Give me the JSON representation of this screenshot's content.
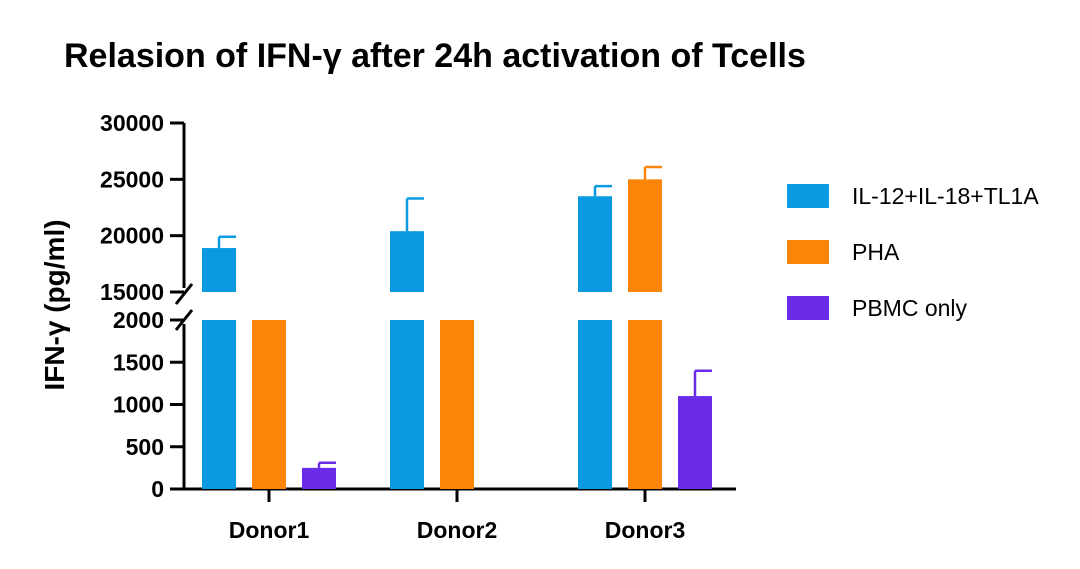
{
  "chart_data": {
    "type": "bar",
    "title": "Relasion of IFN-γ after 24h activation of Tcells",
    "xlabel": "",
    "ylabel": "IFN-γ (pg/ml)",
    "categories": [
      "Donor1",
      "Donor2",
      "Donor3"
    ],
    "y_axis_break": {
      "lower_segment": {
        "ylim": [
          0,
          2000
        ],
        "ticks": [
          "0",
          "500",
          "1000",
          "1500",
          "2000"
        ]
      },
      "upper_segment": {
        "ylim": [
          15000,
          30000
        ],
        "ticks": [
          "15000",
          "20000",
          "25000",
          "30000"
        ]
      }
    },
    "series": [
      {
        "name": "IL-12+IL-18+TL1A",
        "color": "#0A9AE2",
        "values": [
          18900,
          20400,
          23500
        ],
        "errors": [
          1000,
          2900,
          900
        ]
      },
      {
        "name": "PHA",
        "color": "#FA8508",
        "values": [
          null,
          null,
          25000
        ],
        "errors": [
          null,
          null,
          1100
        ]
      },
      {
        "name": "PBMC only",
        "color": "#6A2BE8",
        "values": [
          250,
          null,
          1100
        ],
        "errors": [
          60,
          null,
          300
        ]
      }
    ],
    "notes": "PHA bars for Donor1 and Donor2 are drawn truncated at the axis break (2000); their exact values are not visible.",
    "legend_position": "right",
    "grid": false
  }
}
